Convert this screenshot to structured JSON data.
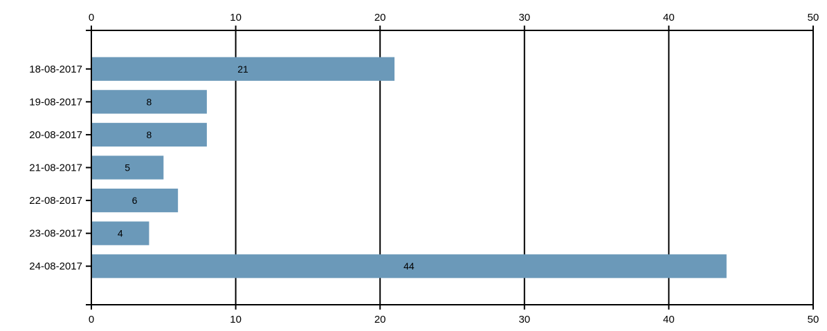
{
  "chart_data": {
    "type": "bar",
    "orientation": "horizontal",
    "categories": [
      "18-08-2017",
      "19-08-2017",
      "20-08-2017",
      "21-08-2017",
      "22-08-2017",
      "23-08-2017",
      "24-08-2017"
    ],
    "values": [
      21,
      8,
      8,
      5,
      6,
      4,
      44
    ],
    "data_labels": [
      "21",
      "8",
      "8",
      "5",
      "6",
      "4",
      "44"
    ],
    "x_ticks": [
      "0",
      "10",
      "20",
      "30",
      "40",
      "50"
    ],
    "xlim": [
      0,
      50
    ],
    "grid": true,
    "bar_color": "#6b99b9",
    "title": "",
    "xlabel": "",
    "ylabel": ""
  }
}
